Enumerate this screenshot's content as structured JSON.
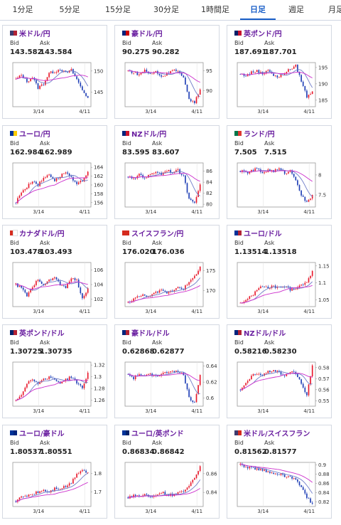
{
  "tabs": [
    "1分足",
    "5分足",
    "15分足",
    "30分足",
    "1時間足",
    "日足",
    "週足",
    "月足"
  ],
  "active_tab": 5,
  "labels": {
    "bid": "Bid",
    "ask": "Ask"
  },
  "colors": {
    "up": "#e8192c",
    "down": "#1f3fb6",
    "ma1": "#cc2fcc",
    "ma2": "#6f7cc8",
    "name": "#6a1fa0"
  },
  "cards": [
    {
      "name": "米ドル/円",
      "bid": "143.582",
      "ask": "143.584",
      "flag": [
        "#3c3b6e",
        "#b22234"
      ],
      "chart_data": {
        "type": "candlestick",
        "x_ticks": [
          "3/14",
          "4/11"
        ],
        "y_ticks": [
          "150",
          "145"
        ],
        "ylim": [
          141.5,
          152
        ],
        "start": 148,
        "end": 143.6,
        "trend": [
          148,
          149,
          147.5,
          148.5,
          146,
          147,
          149.5,
          149.8,
          150.5,
          149.5,
          150.2,
          148,
          145.5,
          143.6
        ]
      }
    },
    {
      "name": "豪ドル/円",
      "bid": "90.275",
      "ask": "90.282",
      "flag": [
        "#00247d",
        "#cc0000"
      ],
      "chart_data": {
        "type": "candlestick",
        "x_ticks": [
          "3/14",
          "4/11"
        ],
        "y_ticks": [
          "95",
          "90"
        ],
        "ylim": [
          86,
          97
        ],
        "start": 95,
        "end": 90.3,
        "trend": [
          95,
          94.5,
          94,
          95.2,
          94,
          94.8,
          93.5,
          94.2,
          95.3,
          94.8,
          93,
          88,
          87,
          90.3
        ]
      }
    },
    {
      "name": "英ポンド/円",
      "bid": "187.691",
      "ask": "187.701",
      "flag": [
        "#012169",
        "#c8102e"
      ],
      "chart_data": {
        "type": "candlestick",
        "x_ticks": [
          "3/14",
          "4/11"
        ],
        "y_ticks": [
          "195",
          "190",
          "185"
        ],
        "ylim": [
          183,
          196.5
        ],
        "start": 193,
        "end": 187.7,
        "trend": [
          193,
          192.5,
          193.5,
          194,
          193,
          194.5,
          192.5,
          192,
          193.5,
          194.5,
          195.5,
          191,
          186,
          187.7
        ]
      }
    },
    {
      "name": "ユーロ/円",
      "bid": "162.984",
      "ask": "162.989",
      "flag": [
        "#003399",
        "#ffcc00"
      ],
      "chart_data": {
        "type": "candlestick",
        "x_ticks": [
          "3/14",
          "4/11"
        ],
        "y_ticks": [
          "164",
          "162",
          "160",
          "158",
          "156"
        ],
        "ylim": [
          155,
          165
        ],
        "start": 156,
        "end": 163,
        "trend": [
          156,
          158.5,
          159.5,
          161,
          160,
          161.5,
          162.5,
          161,
          162,
          163,
          161.5,
          160,
          161,
          163
        ]
      }
    },
    {
      "name": "NZドル/円",
      "bid": "83.595",
      "ask": "83.607",
      "flag": [
        "#00247d",
        "#cc142b"
      ],
      "chart_data": {
        "type": "candlestick",
        "x_ticks": [
          "3/14",
          "4/11"
        ],
        "y_ticks": [
          "86",
          "84",
          "82",
          "80"
        ],
        "ylim": [
          79.5,
          87.5
        ],
        "start": 85,
        "end": 83.6,
        "trend": [
          85,
          84.5,
          85.5,
          84.8,
          85.3,
          86,
          85.5,
          86.2,
          85.8,
          86.1,
          85,
          81,
          80.5,
          83.6
        ]
      }
    },
    {
      "name": "ランド/円",
      "bid": "7.505",
      "ask": "7.515",
      "flag": [
        "#007749",
        "#de3831"
      ],
      "chart_data": {
        "type": "candlestick",
        "x_ticks": [
          "3/14",
          "4/11"
        ],
        "y_ticks": [
          "8",
          "7.5"
        ],
        "ylim": [
          7.2,
          8.3
        ],
        "start": 8.1,
        "end": 7.5,
        "trend": [
          8.1,
          8.05,
          8.1,
          8.15,
          8.05,
          8.12,
          8.1,
          8.15,
          8.05,
          8.1,
          7.9,
          7.5,
          7.3,
          7.5
        ]
      }
    },
    {
      "name": "カナダドル/円",
      "bid": "103.478",
      "ask": "103.493",
      "flag": [
        "#d52b1e",
        "#ffffff"
      ],
      "chart_data": {
        "type": "candlestick",
        "x_ticks": [
          "3/14",
          "4/11"
        ],
        "y_ticks": [
          "106",
          "104",
          "102"
        ],
        "ylim": [
          101,
          107
        ],
        "start": 104,
        "end": 103.5,
        "trend": [
          104,
          103.5,
          102.5,
          103.5,
          104.8,
          104,
          104.5,
          105,
          104,
          103.5,
          105,
          104.5,
          102,
          103.5
        ]
      }
    },
    {
      "name": "スイスフラン/円",
      "bid": "176.020",
      "ask": "176.036",
      "flag": [
        "#d52b1e",
        "#d52b1e"
      ],
      "chart_data": {
        "type": "candlestick",
        "x_ticks": [
          "3/14",
          "4/11"
        ],
        "y_ticks": [
          "175",
          "170"
        ],
        "ylim": [
          166,
          177
        ],
        "start": 167,
        "end": 176,
        "trend": [
          167,
          168,
          168.5,
          169,
          168.5,
          169.5,
          170,
          169.5,
          170,
          171,
          170.5,
          172,
          173.5,
          176
        ]
      }
    },
    {
      "name": "ユーロ/ドル",
      "bid": "1.13514",
      "ask": "1.13518",
      "flag": [
        "#003399",
        "#b22234"
      ],
      "chart_data": {
        "type": "candlestick",
        "x_ticks": [
          "3/14",
          "4/11"
        ],
        "y_ticks": [
          "1.15",
          "1.1",
          "1.05"
        ],
        "ylim": [
          1.03,
          1.16
        ],
        "start": 1.04,
        "end": 1.135,
        "trend": [
          1.04,
          1.05,
          1.06,
          1.08,
          1.09,
          1.085,
          1.09,
          1.085,
          1.09,
          1.08,
          1.085,
          1.095,
          1.1,
          1.135
        ]
      }
    },
    {
      "name": "英ポンド/ドル",
      "bid": "1.30725",
      "ask": "1.30735",
      "flag": [
        "#012169",
        "#b22234"
      ],
      "chart_data": {
        "type": "candlestick",
        "x_ticks": [
          "3/14",
          "4/11"
        ],
        "y_ticks": [
          "1.32",
          "1.3",
          "1.28",
          "1.26"
        ],
        "ylim": [
          1.25,
          1.325
        ],
        "start": 1.26,
        "end": 1.307,
        "trend": [
          1.26,
          1.27,
          1.29,
          1.295,
          1.29,
          1.295,
          1.3,
          1.295,
          1.29,
          1.295,
          1.3,
          1.29,
          1.28,
          1.307
        ]
      }
    },
    {
      "name": "豪ドル/ドル",
      "bid": "0.62868",
      "ask": "0.62877",
      "flag": [
        "#00247d",
        "#b22234"
      ],
      "chart_data": {
        "type": "candlestick",
        "x_ticks": [
          "3/14",
          "4/11"
        ],
        "y_ticks": [
          "0.64",
          "0.62",
          "0.6"
        ],
        "ylim": [
          0.59,
          0.645
        ],
        "start": 0.63,
        "end": 0.629,
        "trend": [
          0.63,
          0.625,
          0.63,
          0.627,
          0.63,
          0.628,
          0.63,
          0.632,
          0.635,
          0.632,
          0.63,
          0.6,
          0.595,
          0.629
        ]
      }
    },
    {
      "name": "NZドル/ドル",
      "bid": "0.58216",
      "ask": "0.58230",
      "flag": [
        "#00247d",
        "#b22234"
      ],
      "chart_data": {
        "type": "candlestick",
        "x_ticks": [
          "3/14",
          "4/11"
        ],
        "y_ticks": [
          "0.58",
          "0.57",
          "0.56",
          "0.55"
        ],
        "ylim": [
          0.545,
          0.585
        ],
        "start": 0.56,
        "end": 0.582,
        "trend": [
          0.56,
          0.565,
          0.572,
          0.575,
          0.573,
          0.576,
          0.578,
          0.575,
          0.573,
          0.576,
          0.575,
          0.565,
          0.555,
          0.582
        ]
      }
    },
    {
      "name": "ユーロ/豪ドル",
      "bid": "1.80537",
      "ask": "1.80551",
      "flag": [
        "#003399",
        "#00247d"
      ],
      "chart_data": {
        "type": "candlestick",
        "x_ticks": [
          "3/14",
          "4/11"
        ],
        "y_ticks": [
          "1.8",
          "1.7"
        ],
        "ylim": [
          1.62,
          1.86
        ],
        "start": 1.65,
        "end": 1.805,
        "trend": [
          1.65,
          1.67,
          1.68,
          1.69,
          1.7,
          1.71,
          1.7,
          1.72,
          1.72,
          1.73,
          1.75,
          1.8,
          1.82,
          1.805
        ]
      }
    },
    {
      "name": "ユーロ/英ポンド",
      "bid": "0.86834",
      "ask": "0.86842",
      "flag": [
        "#003399",
        "#012169"
      ],
      "chart_data": {
        "type": "candlestick",
        "x_ticks": [
          "3/14",
          "4/11"
        ],
        "y_ticks": [
          "0.86",
          "0.84"
        ],
        "ylim": [
          0.825,
          0.872
        ],
        "start": 0.835,
        "end": 0.868,
        "trend": [
          0.835,
          0.837,
          0.836,
          0.838,
          0.835,
          0.838,
          0.84,
          0.838,
          0.837,
          0.839,
          0.842,
          0.848,
          0.856,
          0.868
        ]
      }
    },
    {
      "name": "米ドル/スイスフラン",
      "bid": "0.81562",
      "ask": "0.81577",
      "flag": [
        "#3c3b6e",
        "#d52b1e"
      ],
      "chart_data": {
        "type": "candlestick",
        "x_ticks": [
          "3/14",
          "4/11"
        ],
        "y_ticks": [
          "0.9",
          "0.88",
          "0.86",
          "0.84",
          "0.82"
        ],
        "ylim": [
          0.81,
          0.905
        ],
        "start": 0.9,
        "end": 0.816,
        "trend": [
          0.9,
          0.895,
          0.893,
          0.89,
          0.888,
          0.885,
          0.883,
          0.88,
          0.875,
          0.873,
          0.87,
          0.85,
          0.83,
          0.816
        ]
      }
    }
  ]
}
